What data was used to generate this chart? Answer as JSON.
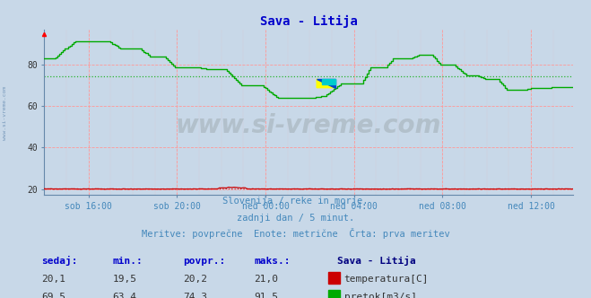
{
  "title": "Sava - Litija",
  "title_color": "#0000cc",
  "bg_color": "#c8d8e8",
  "plot_bg_color": "#c8d8e8",
  "grid_color": "#ff9999",
  "xlabel_color": "#4488bb",
  "ylim": [
    17,
    97
  ],
  "yticks": [
    20,
    40,
    60,
    80
  ],
  "x_labels": [
    "sob 16:00",
    "sob 20:00",
    "ned 00:00",
    "ned 04:00",
    "ned 08:00",
    "ned 12:00"
  ],
  "temp_color": "#cc0000",
  "flow_color": "#00aa00",
  "temp_avg": 20.2,
  "flow_avg": 74.3,
  "watermark": "www.si-vreme.com",
  "footer_line1": "Slovenija / reke in morje.",
  "footer_line2": "zadnji dan / 5 minut.",
  "footer_line3": "Meritve: povprečne  Enote: metrične  Črta: prva meritev",
  "legend_title": "Sava - Litija",
  "legend_temp": "temperatura[C]",
  "legend_flow": "pretok[m3/s]",
  "table_headers": [
    "sedaj:",
    "min.:",
    "povpr.:",
    "maks.:"
  ],
  "table_temp": [
    "20,1",
    "19,5",
    "20,2",
    "21,0"
  ],
  "table_flow": [
    "69,5",
    "63,4",
    "74,3",
    "91,5"
  ]
}
